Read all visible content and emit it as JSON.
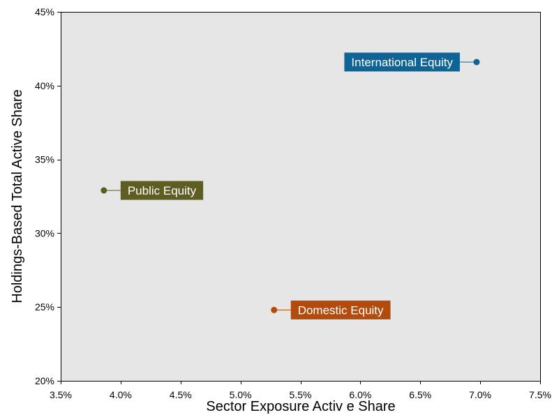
{
  "chart_data": {
    "type": "scatter",
    "xlabel": "Sector Exposure Activ e Share",
    "ylabel": "Holdings-Based Total Active Share",
    "xlim": [
      3.5,
      7.5
    ],
    "ylim": [
      20,
      45
    ],
    "x_ticks": [
      {
        "value": 3.5,
        "label": "3.5%"
      },
      {
        "value": 4.0,
        "label": "4.0%"
      },
      {
        "value": 4.5,
        "label": "4.5%"
      },
      {
        "value": 5.0,
        "label": "5.0%"
      },
      {
        "value": 5.5,
        "label": "5.5%"
      },
      {
        "value": 6.0,
        "label": "6.0%"
      },
      {
        "value": 6.5,
        "label": "6.5%"
      },
      {
        "value": 7.0,
        "label": "7.0%"
      },
      {
        "value": 7.5,
        "label": "7.5%"
      }
    ],
    "y_ticks": [
      {
        "value": 20,
        "label": "20%"
      },
      {
        "value": 25,
        "label": "25%"
      },
      {
        "value": 30,
        "label": "30%"
      },
      {
        "value": 35,
        "label": "35%"
      },
      {
        "value": 40,
        "label": "40%"
      },
      {
        "value": 45,
        "label": "45%"
      }
    ],
    "grid": false,
    "plot_background": "#e6e6e6",
    "points": [
      {
        "label": "International Equity",
        "x": 6.97,
        "y": 41.6,
        "color": "#0f6496",
        "label_position": "left"
      },
      {
        "label": "Public Equity",
        "x": 3.86,
        "y": 32.9,
        "color": "#5e5d22",
        "label_position": "right"
      },
      {
        "label": "Domestic Equity",
        "x": 5.28,
        "y": 24.8,
        "color": "#b34b0c",
        "label_position": "right"
      }
    ]
  }
}
